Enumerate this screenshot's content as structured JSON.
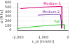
{
  "chart_data": {
    "type": "line",
    "x_label": "ε_pl [mm/m]",
    "y_label": "σ [MPa]",
    "xlim": [
      -2000,
      0
    ],
    "xticks": [
      -2000,
      -1000,
      0
    ],
    "ylim": [
      0,
      600
    ],
    "yticks": [
      0,
      100,
      200,
      300,
      400,
      500,
      600
    ],
    "grid": true,
    "series": [
      {
        "name": "Medium 1",
        "color": "#e0007a",
        "x": [
          -1900,
          -1500,
          -1000,
          -500,
          -250,
          -240,
          -230
        ],
        "values": [
          470,
          490,
          505,
          515,
          520,
          300,
          50
        ]
      },
      {
        "name": "Medium 2",
        "color": "#7030a0",
        "x": [
          -1200,
          -1000,
          -600,
          -300,
          -270,
          -260
        ],
        "values": [
          330,
          335,
          340,
          345,
          200,
          40
        ]
      },
      {
        "name": "Fall 1",
        "color": "#33cc33",
        "x": [
          -2000,
          -1500,
          -1000,
          -500,
          -150,
          -140
        ],
        "values": [
          40,
          70,
          95,
          115,
          125,
          20
        ]
      }
    ]
  }
}
